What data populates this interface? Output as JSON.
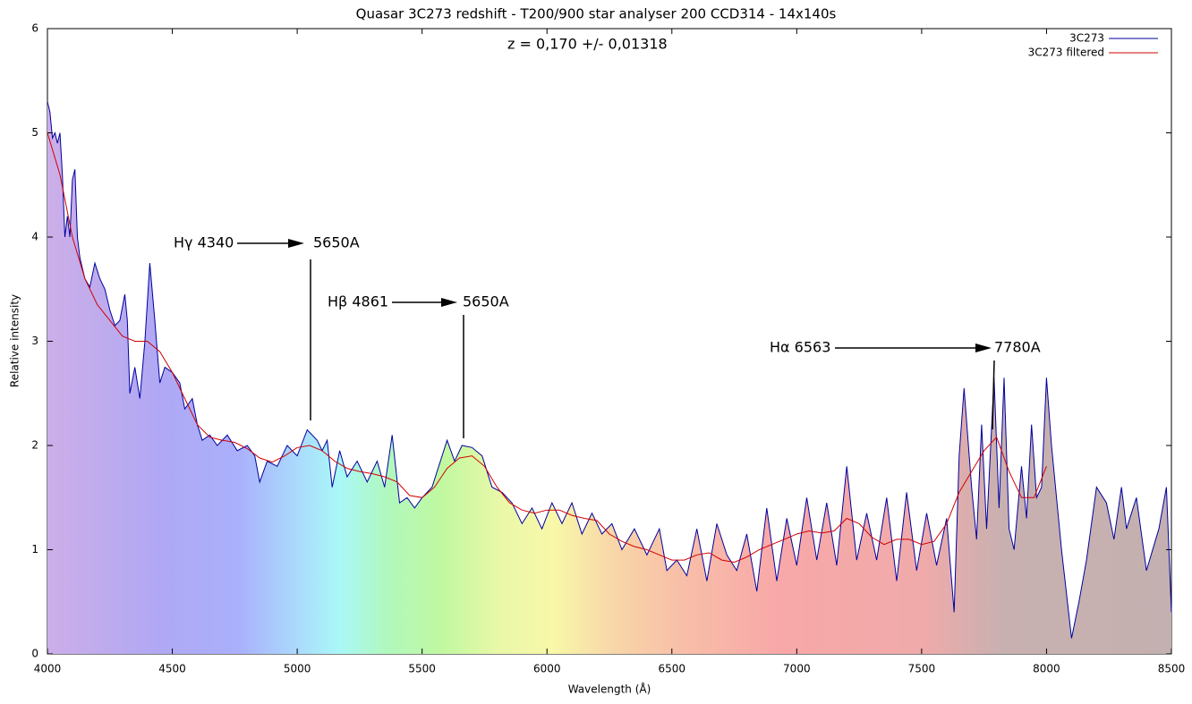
{
  "chart_data": {
    "type": "line",
    "title": "Quasar 3C273 redshift - T200/900 star analyser 200 CCD314 - 14x140s",
    "xlabel": "Wavelength (Å)",
    "ylabel": "Relative intensity",
    "xlim": [
      4000,
      8500
    ],
    "xticks": [
      4000,
      4500,
      5000,
      5500,
      6000,
      6500,
      7000,
      7500,
      8000,
      8500
    ],
    "ylim": [
      0,
      6
    ],
    "yticks": [
      0,
      1,
      2,
      3,
      4,
      5,
      6
    ],
    "legend": "upper right",
    "annotations": [
      "z = 0,170 +/- 0,01318",
      "Hγ 4340",
      "5650A",
      "Hβ 4861",
      "5650A",
      "Hα 6563",
      "7780A"
    ],
    "series": [
      {
        "name": "3C273",
        "color": "#0000a0",
        "x": [
          4000,
          4010,
          4020,
          4030,
          4040,
          4050,
          4060,
          4070,
          4080,
          4090,
          4100,
          4110,
          4120,
          4130,
          4150,
          4170,
          4190,
          4210,
          4230,
          4250,
          4270,
          4290,
          4310,
          4320,
          4330,
          4350,
          4370,
          4390,
          4410,
          4430,
          4450,
          4470,
          4500,
          4530,
          4550,
          4580,
          4600,
          4620,
          4650,
          4680,
          4720,
          4760,
          4800,
          4830,
          4850,
          4880,
          4920,
          4960,
          5000,
          5040,
          5080,
          5100,
          5120,
          5140,
          5170,
          5200,
          5240,
          5280,
          5320,
          5350,
          5380,
          5410,
          5440,
          5470,
          5500,
          5540,
          5580,
          5600,
          5630,
          5660,
          5700,
          5740,
          5780,
          5820,
          5860,
          5900,
          5940,
          5980,
          6020,
          6060,
          6100,
          6140,
          6180,
          6220,
          6260,
          6300,
          6350,
          6400,
          6450,
          6480,
          6520,
          6560,
          6600,
          6640,
          6680,
          6720,
          6760,
          6800,
          6840,
          6880,
          6920,
          6960,
          7000,
          7040,
          7080,
          7120,
          7160,
          7200,
          7240,
          7280,
          7320,
          7360,
          7400,
          7440,
          7480,
          7520,
          7560,
          7600,
          7630,
          7650,
          7670,
          7700,
          7720,
          7740,
          7760,
          7790,
          7810,
          7830,
          7850,
          7870,
          7900,
          7920,
          7940,
          7960,
          7980,
          8000,
          8020,
          8060,
          8100,
          8130,
          8160,
          8200,
          8240,
          8270,
          8300,
          8320,
          8360,
          8400,
          8450,
          8480,
          8500
        ],
        "values": [
          5.3,
          5.2,
          4.95,
          5.0,
          4.9,
          5.0,
          4.6,
          4.0,
          4.2,
          4.0,
          4.55,
          4.65,
          4.0,
          3.8,
          3.6,
          3.52,
          3.75,
          3.6,
          3.5,
          3.3,
          3.15,
          3.2,
          3.45,
          3.2,
          2.5,
          2.75,
          2.45,
          3.0,
          3.75,
          3.2,
          2.6,
          2.75,
          2.7,
          2.6,
          2.35,
          2.45,
          2.2,
          2.05,
          2.1,
          2.0,
          2.1,
          1.95,
          2.0,
          1.9,
          1.65,
          1.85,
          1.8,
          2.0,
          1.9,
          2.15,
          2.05,
          1.95,
          2.05,
          1.6,
          1.95,
          1.7,
          1.85,
          1.65,
          1.85,
          1.6,
          2.1,
          1.45,
          1.5,
          1.4,
          1.5,
          1.6,
          1.9,
          2.05,
          1.85,
          2.0,
          1.98,
          1.9,
          1.6,
          1.55,
          1.45,
          1.25,
          1.4,
          1.2,
          1.45,
          1.25,
          1.45,
          1.15,
          1.35,
          1.15,
          1.25,
          1.0,
          1.2,
          0.95,
          1.2,
          0.8,
          0.9,
          0.75,
          1.2,
          0.7,
          1.25,
          0.95,
          0.8,
          1.15,
          0.6,
          1.4,
          0.7,
          1.3,
          0.85,
          1.5,
          0.9,
          1.45,
          0.85,
          1.8,
          0.9,
          1.35,
          0.9,
          1.5,
          0.7,
          1.55,
          0.8,
          1.35,
          0.85,
          1.3,
          0.4,
          1.9,
          2.55,
          1.6,
          1.1,
          2.2,
          1.2,
          2.65,
          1.4,
          2.65,
          1.2,
          1.0,
          1.8,
          1.3,
          2.2,
          1.5,
          1.6,
          2.65,
          2.0,
          1.0,
          0.15,
          0.5,
          0.9,
          1.6,
          1.45,
          1.1,
          1.6,
          1.2,
          1.5,
          0.8,
          1.2,
          1.6,
          0.4
        ]
      },
      {
        "name": "3C273 filtered",
        "color": "#d00000",
        "x": [
          4000,
          4050,
          4100,
          4150,
          4200,
          4250,
          4300,
          4350,
          4400,
          4450,
          4500,
          4550,
          4600,
          4650,
          4700,
          4750,
          4800,
          4850,
          4900,
          4950,
          5000,
          5050,
          5100,
          5150,
          5200,
          5250,
          5300,
          5350,
          5400,
          5450,
          5500,
          5550,
          5600,
          5650,
          5700,
          5750,
          5800,
          5850,
          5900,
          5950,
          6000,
          6050,
          6100,
          6150,
          6200,
          6250,
          6300,
          6350,
          6400,
          6450,
          6500,
          6550,
          6600,
          6650,
          6700,
          6750,
          6800,
          6850,
          6900,
          6950,
          7000,
          7050,
          7100,
          7150,
          7200,
          7250,
          7300,
          7350,
          7400,
          7450,
          7500,
          7550,
          7600,
          7650,
          7700,
          7750,
          7800,
          7850,
          7900,
          7950,
          8000
        ],
        "values": [
          5.0,
          4.6,
          4.0,
          3.6,
          3.35,
          3.2,
          3.05,
          3.0,
          3.0,
          2.9,
          2.7,
          2.45,
          2.2,
          2.08,
          2.05,
          2.03,
          1.97,
          1.88,
          1.84,
          1.9,
          1.98,
          2.0,
          1.95,
          1.85,
          1.78,
          1.75,
          1.73,
          1.7,
          1.65,
          1.52,
          1.5,
          1.6,
          1.78,
          1.88,
          1.9,
          1.8,
          1.6,
          1.45,
          1.38,
          1.35,
          1.38,
          1.38,
          1.33,
          1.3,
          1.28,
          1.15,
          1.08,
          1.03,
          1.0,
          0.95,
          0.9,
          0.9,
          0.95,
          0.97,
          0.9,
          0.88,
          0.93,
          1.0,
          1.05,
          1.1,
          1.15,
          1.18,
          1.16,
          1.18,
          1.3,
          1.25,
          1.12,
          1.05,
          1.1,
          1.1,
          1.05,
          1.08,
          1.25,
          1.55,
          1.75,
          1.95,
          2.08,
          1.75,
          1.5,
          1.5,
          1.8
        ]
      }
    ]
  }
}
